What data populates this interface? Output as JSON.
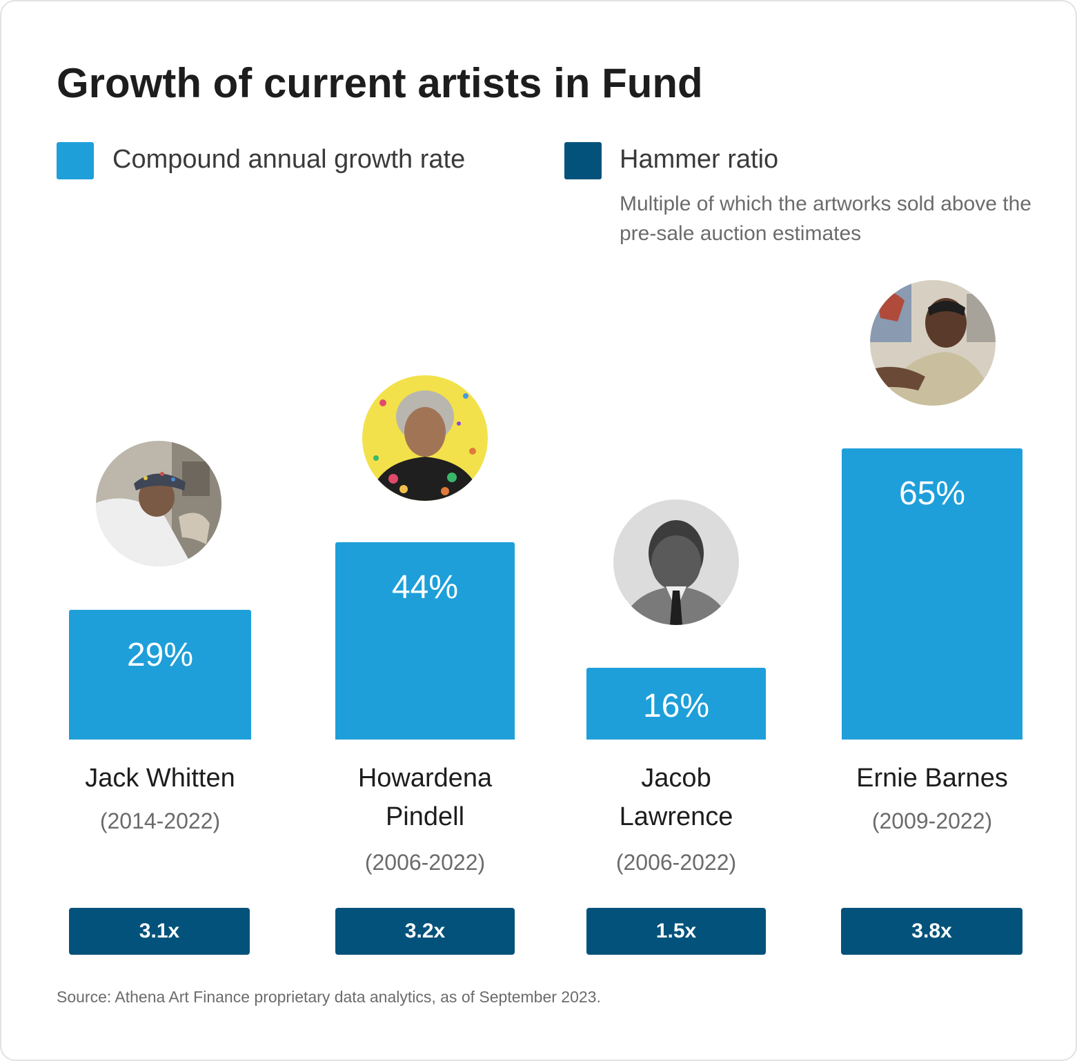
{
  "chart_data": {
    "type": "bar",
    "title": "Growth of current artists in Fund",
    "legend": {
      "placement": "top-left",
      "entries": [
        {
          "label": "Compound annual growth rate",
          "color": "#1e9fd9"
        },
        {
          "label": "Hammer ratio",
          "color": "#03527b",
          "description": "Multiple of which the artworks sold above the pre-sale auction estimates"
        }
      ]
    },
    "categories": [
      "Jack Whitten",
      "Howardena Pindell",
      "Jacob Lawrence",
      "Ernie Barnes"
    ],
    "periods": [
      "(2014-2022)",
      "(2006-2022)",
      "(2006-2022)",
      "(2009-2022)"
    ],
    "series": [
      {
        "name": "Compound annual growth rate",
        "values": [
          29,
          44,
          16,
          65
        ],
        "labels": [
          "29%",
          "44%",
          "16%",
          "65%"
        ]
      },
      {
        "name": "Hammer ratio",
        "values": [
          3.1,
          3.2,
          1.5,
          3.8
        ],
        "labels": [
          "3.1x",
          "3.2x",
          "1.5x",
          "3.8x"
        ]
      }
    ],
    "grid": false,
    "source": "Source: Athena Art Finance proprietary data analytics, as of September 2023."
  }
}
